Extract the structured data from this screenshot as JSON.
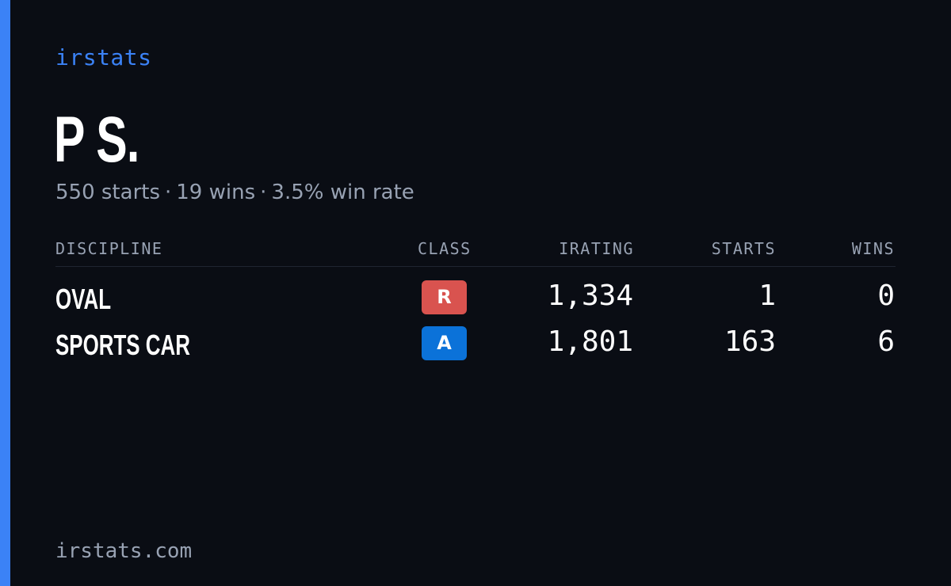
{
  "brand": "irstats",
  "driver": {
    "name": "P S.",
    "starts_text": "550 starts",
    "wins_text": "19 wins",
    "win_rate_text": "3.5% win rate",
    "separator": "·"
  },
  "table": {
    "headers": {
      "discipline": "DISCIPLINE",
      "class": "CLASS",
      "irating": "IRATING",
      "starts": "STARTS",
      "wins": "WINS"
    },
    "rows": [
      {
        "discipline": "OVAL",
        "class": "R",
        "class_color": "#d9534f",
        "irating": "1,334",
        "starts": "1",
        "wins": "0"
      },
      {
        "discipline": "SPORTS CAR",
        "class": "A",
        "class_color": "#0b72d9",
        "irating": "1,801",
        "starts": "163",
        "wins": "6"
      }
    ]
  },
  "footer": "irstats.com",
  "colors": {
    "background": "#0a0d14",
    "accent": "#3b82f6",
    "muted_text": "#98a2b3"
  }
}
